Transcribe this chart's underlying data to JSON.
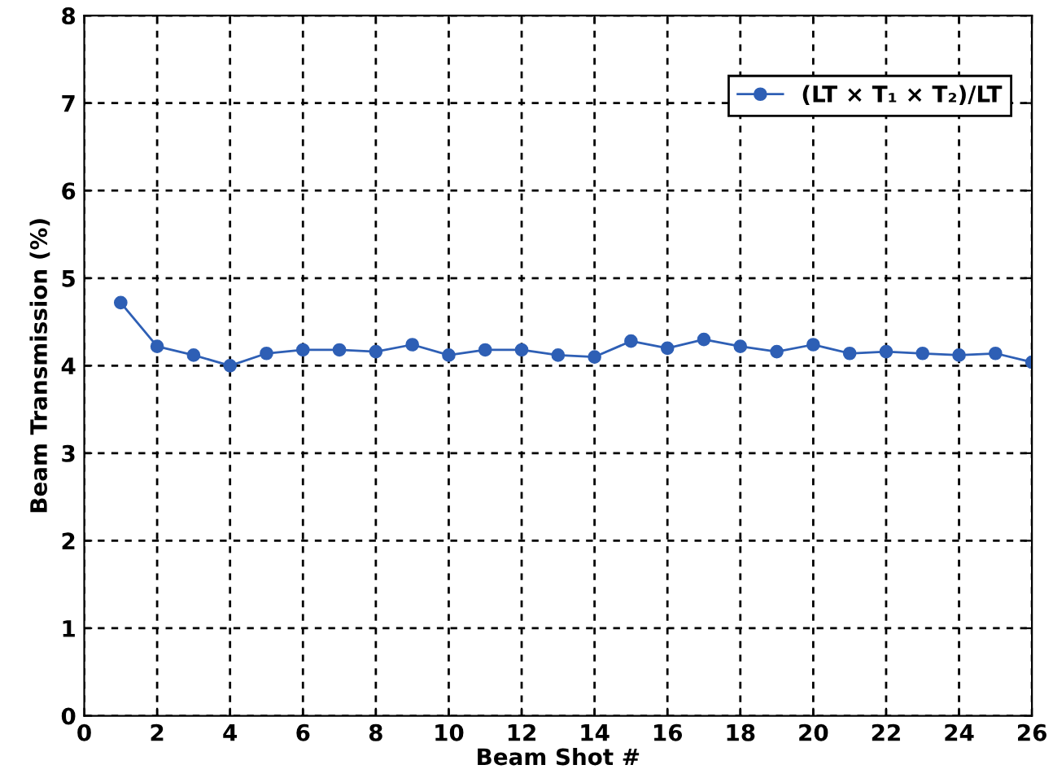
{
  "chart_data": {
    "type": "line",
    "xlabel": "Beam Shot #",
    "ylabel": "Beam Transmission (%)",
    "x": [
      1,
      2,
      3,
      4,
      5,
      6,
      7,
      8,
      9,
      10,
      11,
      12,
      13,
      14,
      15,
      16,
      17,
      18,
      19,
      20,
      21,
      22,
      23,
      24,
      25,
      26
    ],
    "series": [
      {
        "name": "(LT × T₁ × T₂)/LT",
        "color": "#2e5fb5",
        "values": [
          4.72,
          4.22,
          4.12,
          4.0,
          4.14,
          4.18,
          4.18,
          4.16,
          4.24,
          4.12,
          4.18,
          4.18,
          4.12,
          4.1,
          4.28,
          4.2,
          4.3,
          4.22,
          4.16,
          4.24,
          4.14,
          4.16,
          4.14,
          4.12,
          4.14,
          4.04
        ]
      }
    ],
    "xlim": [
      0,
      26
    ],
    "xticks": [
      0,
      2,
      4,
      6,
      8,
      10,
      12,
      14,
      16,
      18,
      20,
      22,
      24,
      26
    ],
    "ylim": [
      0,
      8
    ],
    "yticks": [
      0,
      1,
      2,
      3,
      4,
      5,
      6,
      7,
      8
    ],
    "grid": true,
    "legend": "top right",
    "marker": "circle",
    "line_style": "solid"
  }
}
